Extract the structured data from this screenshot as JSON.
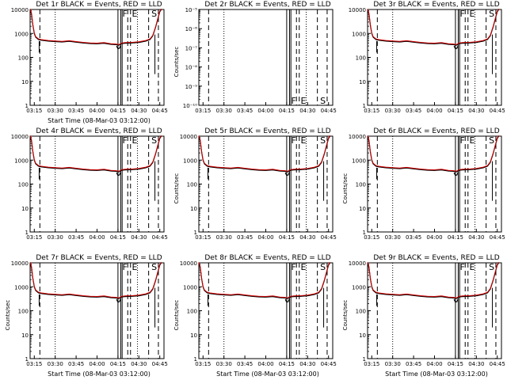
{
  "chart_data": {
    "type": "line",
    "x_tick_labels": [
      "03:15",
      "03:30",
      "03:45",
      "04:00",
      "04:15",
      "04:30",
      "04:45"
    ],
    "x_ticks_min": [
      15,
      30,
      45,
      60,
      75,
      90,
      105
    ],
    "xlim_min": [
      12,
      108
    ],
    "xlabel": "Start Time (08-Mar-03 03:12:00)",
    "ylabel": "Counts/sec",
    "yscale": "log",
    "colors": {
      "events": "#000000",
      "lld": "#d40000"
    },
    "flag_labels": [
      "F",
      "E",
      "S"
    ],
    "curve_time_min": [
      12,
      13,
      14,
      15,
      16,
      18,
      20,
      25,
      30,
      35,
      40,
      45,
      50,
      55,
      60,
      65,
      70,
      74,
      75,
      76,
      77,
      78,
      80,
      85,
      90,
      95,
      98,
      100,
      102,
      104,
      105,
      106
    ],
    "curve_counts": [
      10000,
      6500,
      2200,
      1000,
      700,
      560,
      520,
      480,
      460,
      440,
      470,
      430,
      400,
      380,
      370,
      390,
      350,
      340,
      320,
      330,
      360,
      380,
      390,
      400,
      420,
      480,
      560,
      800,
      1800,
      5000,
      8000,
      10000
    ],
    "events_dip": {
      "time_min": [
        74,
        75,
        76,
        77
      ],
      "counts": [
        300,
        230,
        240,
        310
      ]
    },
    "dropout_lines": [
      {
        "time_min": 18.5,
        "from": 480,
        "to": 160
      },
      {
        "time_min": 101.5,
        "from": 900,
        "to": 20
      }
    ],
    "marker_lines": [
      {
        "time_min": 19,
        "style": "dashed"
      },
      {
        "time_min": 30,
        "style": "dotted"
      },
      {
        "time_min": 75,
        "style": "solid"
      },
      {
        "time_min": 77,
        "style": "solid"
      },
      {
        "time_min": 78,
        "style": "solid"
      },
      {
        "time_min": 82,
        "style": "dashed"
      },
      {
        "time_min": 84,
        "style": "dashed"
      },
      {
        "time_min": 89,
        "style": "dotted"
      },
      {
        "time_min": 97,
        "style": "dashed"
      },
      {
        "time_min": 104,
        "style": "dashed"
      }
    ],
    "panels": [
      {
        "title": "Det 1r BLACK = Events, RED = LLD",
        "ylim": [
          1,
          10000
        ],
        "y_tick_labels": [
          "1",
          "10",
          "100",
          "1000",
          "10000"
        ],
        "has_data": true,
        "ylabel_shown": false,
        "xlabel_shown": true
      },
      {
        "title": "Det 2r BLACK = Events, RED = LLD",
        "ylim": [
          1e-10,
          1e-05
        ],
        "y_tick_labels": [
          "10⁻¹⁰",
          "10⁻⁹",
          "10⁻⁸",
          "10⁻⁷",
          "10⁻⁶",
          "10⁻⁵"
        ],
        "has_data": false,
        "ylabel_shown": true,
        "xlabel_shown": false
      },
      {
        "title": "Det 3r BLACK = Events, RED = LLD",
        "ylim": [
          1,
          10000
        ],
        "y_tick_labels": [
          "1",
          "10",
          "100",
          "1000",
          "10000"
        ],
        "has_data": true,
        "ylabel_shown": false,
        "xlabel_shown": false
      },
      {
        "title": "Det 4r BLACK = Events, RED = LLD",
        "ylim": [
          1,
          10000
        ],
        "y_tick_labels": [
          "1",
          "10",
          "100",
          "1000",
          "10000"
        ],
        "has_data": true,
        "ylabel_shown": false,
        "xlabel_shown": false
      },
      {
        "title": "Det 5r BLACK = Events, RED = LLD",
        "ylim": [
          1,
          10000
        ],
        "y_tick_labels": [
          "1",
          "10",
          "100",
          "1000",
          "10000"
        ],
        "has_data": true,
        "ylabel_shown": true,
        "xlabel_shown": false
      },
      {
        "title": "Det 6r BLACK = Events, RED = LLD",
        "ylim": [
          1,
          10000
        ],
        "y_tick_labels": [
          "1",
          "10",
          "100",
          "1000",
          "10000"
        ],
        "has_data": true,
        "ylabel_shown": true,
        "xlabel_shown": false
      },
      {
        "title": "Det 7r BLACK = Events, RED = LLD",
        "ylim": [
          1,
          10000
        ],
        "y_tick_labels": [
          "1",
          "10",
          "100",
          "1000",
          "10000"
        ],
        "has_data": true,
        "ylabel_shown": true,
        "xlabel_shown": true
      },
      {
        "title": "Det 8r BLACK = Events, RED = LLD",
        "ylim": [
          1,
          10000
        ],
        "y_tick_labels": [
          "1",
          "10",
          "100",
          "1000",
          "10000"
        ],
        "has_data": true,
        "ylabel_shown": true,
        "xlabel_shown": true
      },
      {
        "title": "Det 9r BLACK = Events, RED = LLD",
        "ylim": [
          1,
          10000
        ],
        "y_tick_labels": [
          "1",
          "10",
          "100",
          "1000",
          "10000"
        ],
        "has_data": true,
        "ylabel_shown": true,
        "xlabel_shown": true
      }
    ]
  }
}
